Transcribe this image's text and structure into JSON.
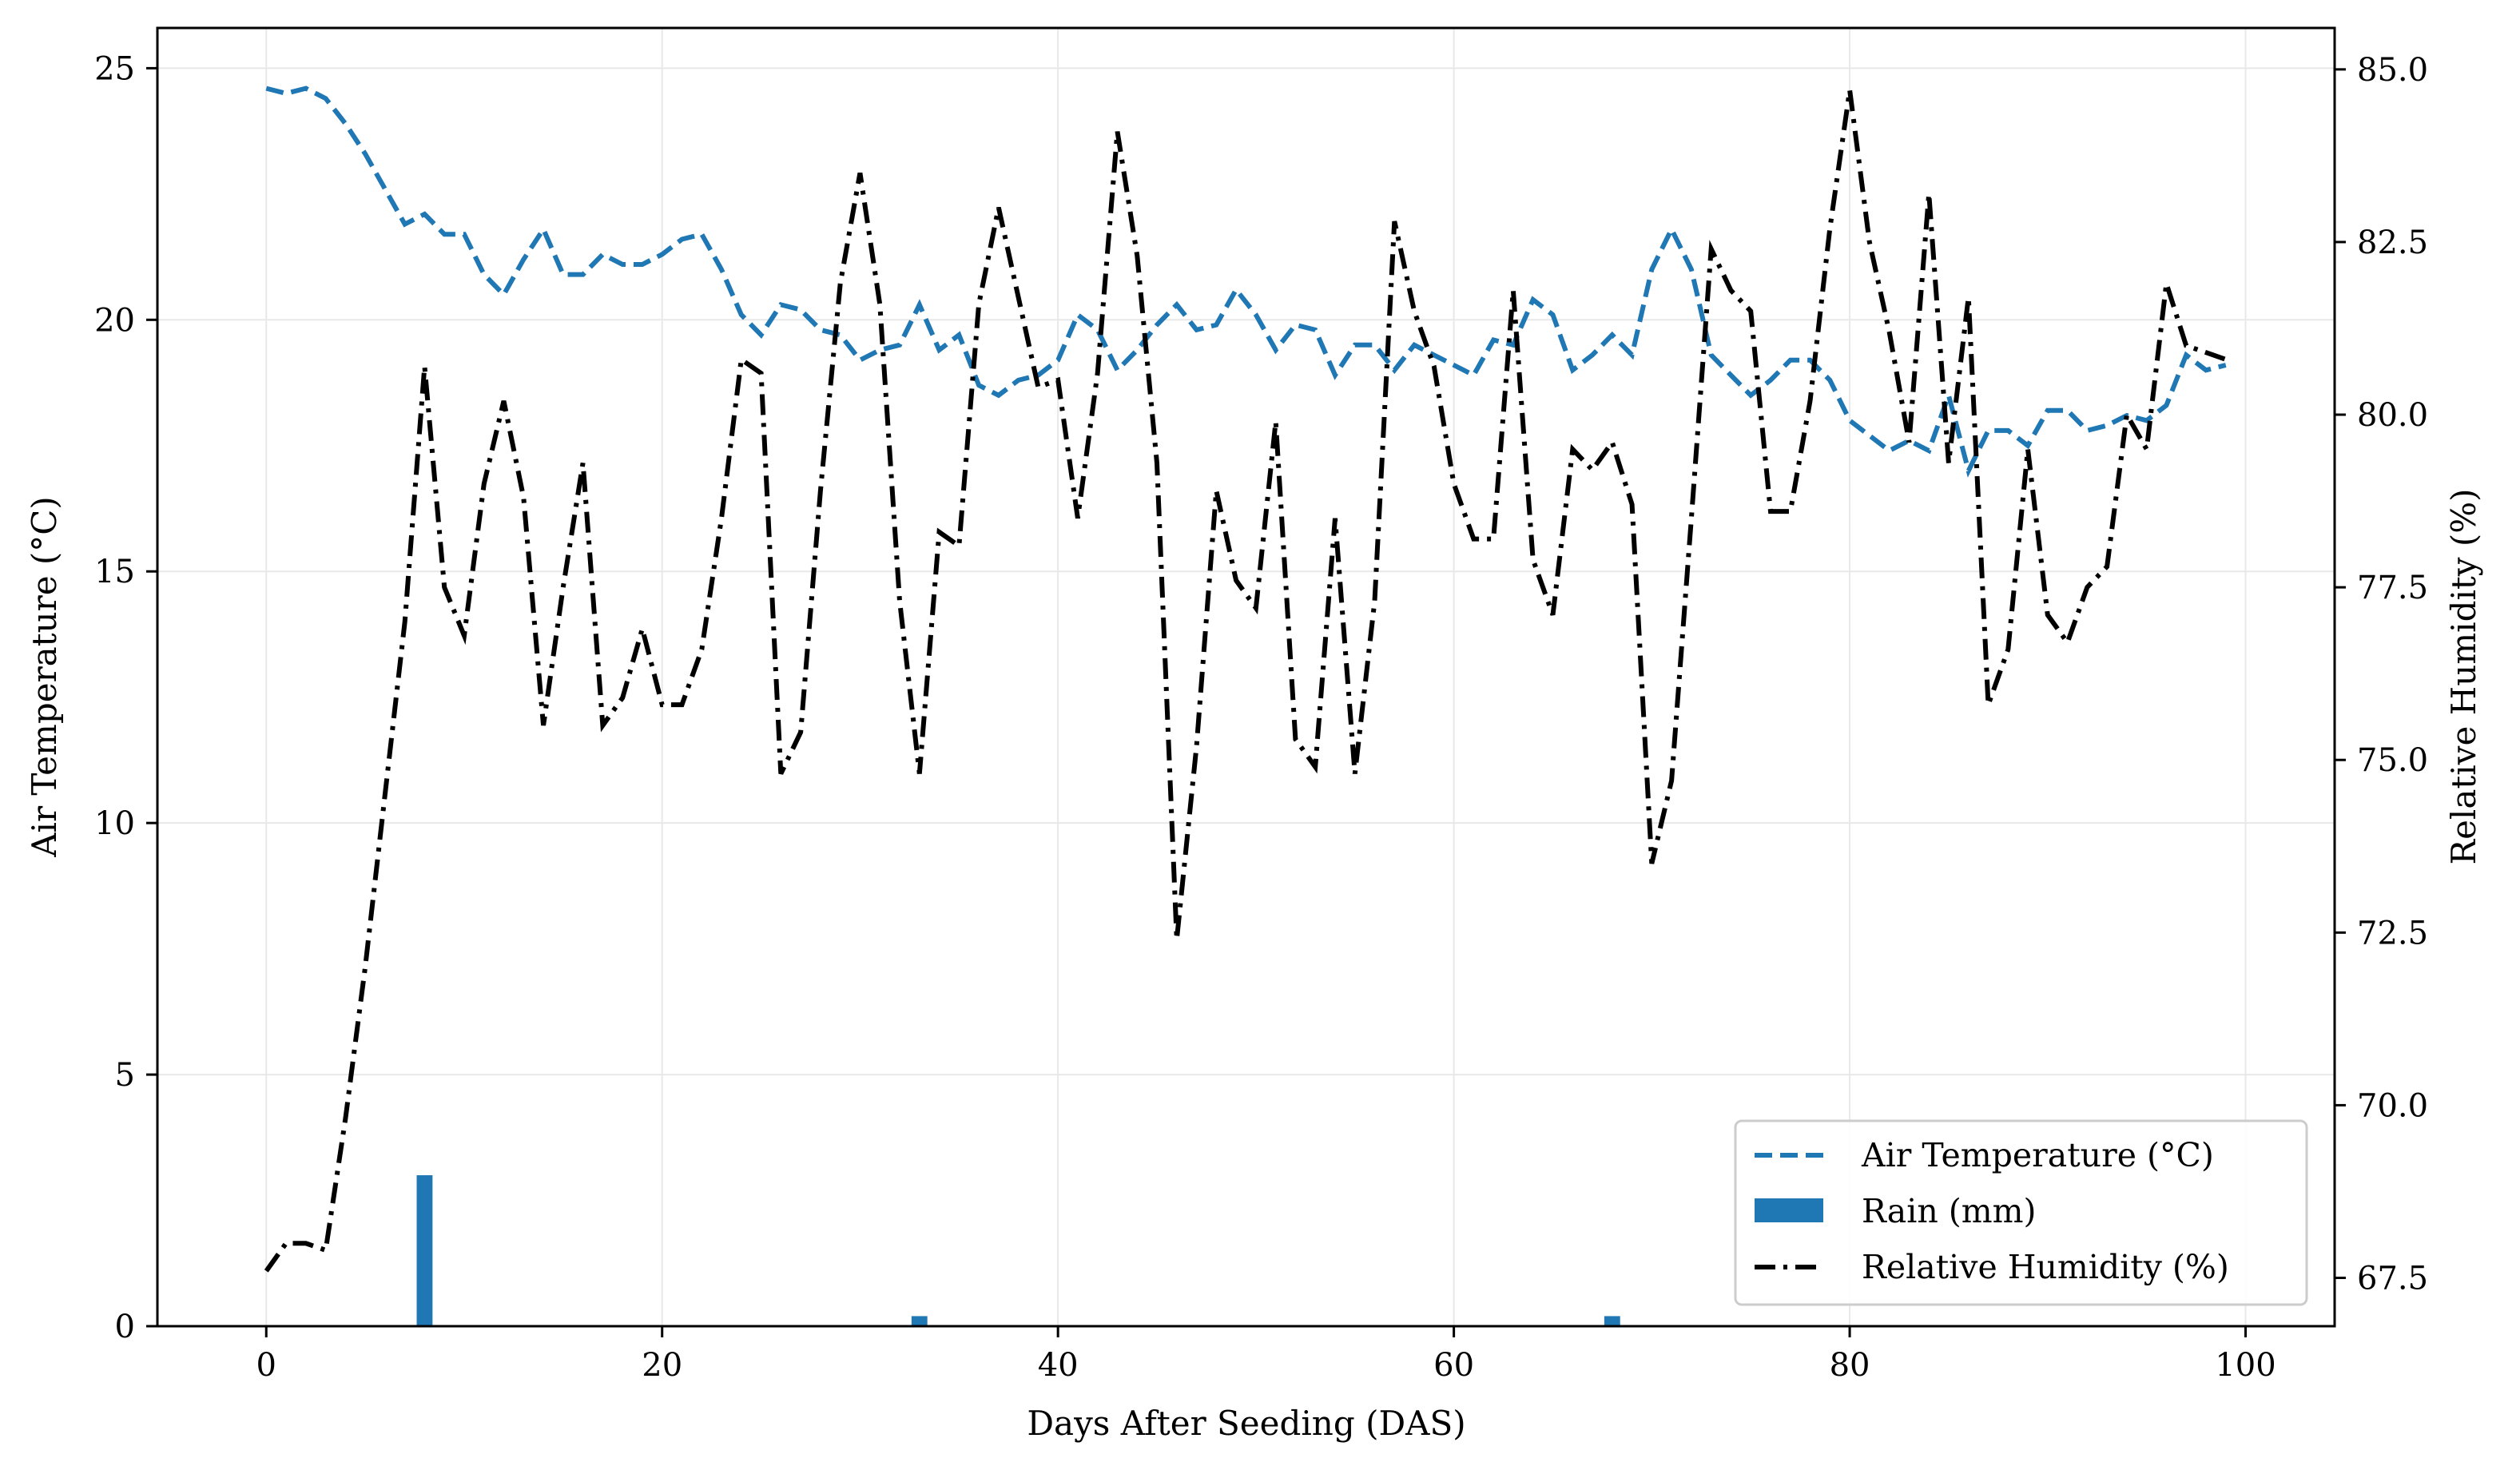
{
  "chart_data": {
    "type": "line",
    "xlabel": "Days After Seeding (DAS)",
    "ylabel_left": "Air Temperature (°C)",
    "ylabel_right": "Relative Humidity (%)",
    "xlim": [
      -5.5,
      104.5
    ],
    "ylim_left": [
      0,
      25.8
    ],
    "ylim_right": [
      66.8,
      85.6
    ],
    "x_ticks": [
      0,
      20,
      40,
      60,
      80,
      100
    ],
    "y_left_ticks": [
      0,
      5,
      10,
      15,
      20,
      25
    ],
    "y_right_ticks": [
      "67.5",
      "70.0",
      "72.5",
      "75.0",
      "77.5",
      "80.0",
      "82.5",
      "85.0"
    ],
    "grid": true,
    "legend_position": "lower-right",
    "colors": {
      "temperature": "#1f77b4",
      "rain": "#1f77b4",
      "humidity": "#000000"
    },
    "series": [
      {
        "name": "Air Temperature (°C)",
        "style": "dashed",
        "axis": "left",
        "x": [
          0,
          1,
          2,
          3,
          4,
          5,
          6,
          7,
          8,
          9,
          10,
          11,
          12,
          13,
          14,
          15,
          16,
          17,
          18,
          19,
          20,
          21,
          22,
          23,
          24,
          25,
          26,
          27,
          28,
          29,
          30,
          31,
          32,
          33,
          34,
          35,
          36,
          37,
          38,
          39,
          40,
          41,
          42,
          43,
          44,
          45,
          46,
          47,
          48,
          49,
          50,
          51,
          52,
          53,
          54,
          55,
          56,
          57,
          58,
          59,
          60,
          61,
          62,
          63,
          64,
          65,
          66,
          67,
          68,
          69,
          70,
          71,
          72,
          73,
          74,
          75,
          76,
          77,
          78,
          79,
          80,
          81,
          82,
          83,
          84,
          85,
          86,
          87,
          88,
          89,
          90,
          91,
          92,
          93,
          94,
          95,
          96,
          97,
          98,
          99
        ],
        "values": [
          24.6,
          24.5,
          24.6,
          24.4,
          23.9,
          23.3,
          22.6,
          21.9,
          22.1,
          21.7,
          21.7,
          20.9,
          20.5,
          21.2,
          21.8,
          20.9,
          20.9,
          21.3,
          21.1,
          21.1,
          21.3,
          21.6,
          21.7,
          21.0,
          20.1,
          19.7,
          20.3,
          20.2,
          19.8,
          19.7,
          19.2,
          19.4,
          19.5,
          20.3,
          19.4,
          19.7,
          18.7,
          18.5,
          18.8,
          18.9,
          19.2,
          20.1,
          19.8,
          19.0,
          19.4,
          19.9,
          20.3,
          19.8,
          19.9,
          20.6,
          20.1,
          19.4,
          19.9,
          19.8,
          18.9,
          19.5,
          19.5,
          19.0,
          19.5,
          19.3,
          19.1,
          18.9,
          19.6,
          19.5,
          20.4,
          20.1,
          19.0,
          19.3,
          19.7,
          19.3,
          21.0,
          21.8,
          21.0,
          19.3,
          18.9,
          18.5,
          18.8,
          19.2,
          19.2,
          18.8,
          18.0,
          17.7,
          17.4,
          17.6,
          17.4,
          18.5,
          17.0,
          17.8,
          17.8,
          17.5,
          18.2,
          18.2,
          17.8,
          17.9,
          18.1,
          18.0,
          18.3,
          19.3,
          19.0,
          19.1
        ]
      },
      {
        "name": "Rain (mm)",
        "style": "bar",
        "axis": "left",
        "x": [
          8,
          33,
          68
        ],
        "values": [
          3.0,
          0.2,
          0.2
        ]
      },
      {
        "name": "Relative Humidity (%)",
        "style": "dashdot",
        "axis": "right",
        "x": [
          0,
          1,
          2,
          3,
          4,
          5,
          6,
          7,
          8,
          9,
          10,
          11,
          12,
          13,
          14,
          15,
          16,
          17,
          18,
          19,
          20,
          21,
          22,
          23,
          24,
          25,
          26,
          27,
          28,
          29,
          30,
          31,
          32,
          33,
          34,
          35,
          36,
          37,
          38,
          39,
          40,
          41,
          42,
          43,
          44,
          45,
          46,
          47,
          48,
          49,
          50,
          51,
          52,
          53,
          54,
          55,
          56,
          57,
          58,
          59,
          60,
          61,
          62,
          63,
          64,
          65,
          66,
          67,
          68,
          69,
          70,
          71,
          72,
          73,
          74,
          75,
          76,
          77,
          78,
          79,
          80,
          81,
          82,
          83,
          84,
          85,
          86,
          87,
          88,
          89,
          90,
          91,
          92,
          93,
          94,
          95,
          96,
          97,
          98,
          99
        ],
        "values": [
          67.6,
          68.0,
          68.0,
          67.9,
          69.8,
          72.0,
          74.5,
          77.0,
          80.7,
          77.5,
          76.8,
          79.0,
          80.2,
          78.8,
          75.5,
          77.5,
          79.3,
          75.5,
          75.9,
          76.9,
          75.8,
          75.8,
          76.6,
          78.5,
          80.8,
          80.6,
          74.8,
          75.4,
          78.9,
          81.9,
          83.5,
          81.6,
          77.3,
          74.8,
          78.3,
          78.1,
          81.6,
          83.0,
          81.7,
          80.4,
          80.5,
          78.5,
          80.6,
          84.1,
          82.3,
          79.3,
          72.4,
          75.2,
          78.9,
          77.6,
          77.2,
          79.9,
          75.3,
          74.9,
          78.5,
          74.8,
          77.3,
          82.8,
          81.5,
          80.7,
          79.0,
          78.2,
          78.2,
          81.8,
          77.9,
          77.1,
          79.5,
          79.2,
          79.6,
          78.7,
          73.5,
          74.7,
          78.5,
          82.4,
          81.8,
          81.5,
          78.6,
          78.6,
          80.2,
          82.7,
          84.7,
          82.5,
          81.2,
          79.6,
          83.2,
          79.3,
          81.7,
          75.8,
          76.6,
          79.5,
          77.1,
          76.7,
          77.5,
          77.8,
          80.0,
          79.5,
          81.9,
          81.0,
          80.9,
          80.8
        ]
      }
    ],
    "legend": [
      "Air Temperature (°C)",
      "Rain (mm)",
      "Relative Humidity (%)"
    ]
  }
}
